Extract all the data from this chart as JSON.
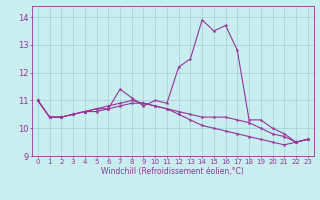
{
  "xlabel": "Windchill (Refroidissement éolien,°C)",
  "background_color": "#c8eef0",
  "grid_color": "#a0d0d4",
  "line_color": "#993399",
  "x": [
    0,
    1,
    2,
    3,
    4,
    5,
    6,
    7,
    8,
    9,
    10,
    11,
    12,
    13,
    14,
    15,
    16,
    17,
    18,
    19,
    20,
    21,
    22,
    23
  ],
  "line1": [
    11.0,
    10.4,
    10.4,
    10.5,
    10.6,
    10.6,
    10.7,
    11.4,
    11.1,
    10.8,
    11.0,
    10.9,
    12.2,
    12.5,
    13.9,
    13.5,
    13.7,
    12.8,
    10.3,
    10.3,
    10.0,
    9.8,
    9.5,
    9.6
  ],
  "line2": [
    11.0,
    10.4,
    10.4,
    10.5,
    10.6,
    10.7,
    10.8,
    10.9,
    11.0,
    10.9,
    10.8,
    10.7,
    10.6,
    10.5,
    10.4,
    10.4,
    10.4,
    10.3,
    10.2,
    10.0,
    9.8,
    9.7,
    9.5,
    9.6
  ],
  "line3": [
    11.0,
    10.4,
    10.4,
    10.5,
    10.6,
    10.7,
    10.7,
    10.8,
    10.9,
    10.9,
    10.8,
    10.7,
    10.5,
    10.3,
    10.1,
    10.0,
    9.9,
    9.8,
    9.7,
    9.6,
    9.5,
    9.4,
    9.5,
    9.6
  ],
  "ylim": [
    9.0,
    14.4
  ],
  "xlim": [
    -0.5,
    23.5
  ],
  "yticks": [
    9,
    10,
    11,
    12,
    13,
    14
  ],
  "xticks": [
    0,
    1,
    2,
    3,
    4,
    5,
    6,
    7,
    8,
    9,
    10,
    11,
    12,
    13,
    14,
    15,
    16,
    17,
    18,
    19,
    20,
    21,
    22,
    23
  ],
  "tick_fontsize": 5,
  "xlabel_fontsize": 5.5,
  "marker_size": 3,
  "linewidth": 0.8
}
